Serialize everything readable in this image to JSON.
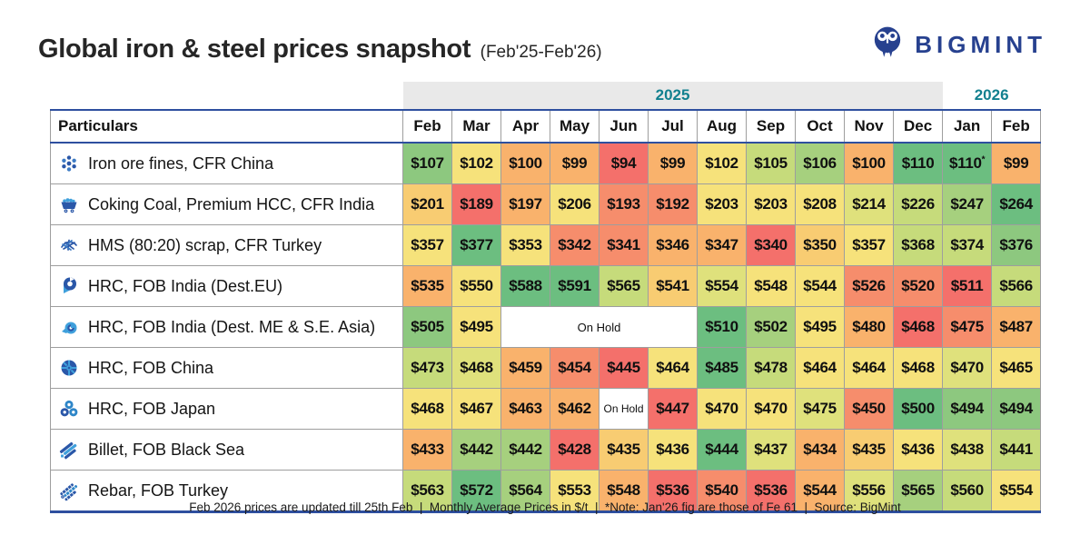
{
  "header": {
    "title": "Global iron & steel prices snapshot",
    "subtitle": "(Feb'25-Feb'26)",
    "logo_text": "BIGMINT"
  },
  "colors": {
    "accent_blue": "#2E4F9F",
    "year_teal": "#12808F",
    "logo_navy": "#27418F",
    "band_gray": "#E9E9E9"
  },
  "table": {
    "particulars_header": "Particulars",
    "year_groups": [
      {
        "label": "2025",
        "span": 11
      },
      {
        "label": "2026",
        "span": 2
      }
    ],
    "months": [
      "Feb",
      "Mar",
      "Apr",
      "May",
      "Jun",
      "Jul",
      "Aug",
      "Sep",
      "Oct",
      "Nov",
      "Dec",
      "Jan",
      "Feb"
    ],
    "palette": {
      "r": "#F4706B",
      "s": "#F68D6C",
      "o": "#F9B26C",
      "a": "#F8CC72",
      "y": "#F6E27B",
      "yg": "#DFE17C",
      "lg": "#C6DB7B",
      "g3": "#A6D07E",
      "g2": "#8DC87F",
      "g1": "#6CBE80",
      "w": "#FFFFFF"
    },
    "rows": [
      {
        "label": "Iron ore fines, CFR China",
        "icon": "iron-ore-icon",
        "cells": [
          {
            "v": "$107",
            "c": "g2"
          },
          {
            "v": "$102",
            "c": "y"
          },
          {
            "v": "$100",
            "c": "o"
          },
          {
            "v": "$99",
            "c": "o"
          },
          {
            "v": "$94",
            "c": "r"
          },
          {
            "v": "$99",
            "c": "o"
          },
          {
            "v": "$102",
            "c": "y"
          },
          {
            "v": "$105",
            "c": "lg"
          },
          {
            "v": "$106",
            "c": "g3"
          },
          {
            "v": "$100",
            "c": "o"
          },
          {
            "v": "$110",
            "c": "g1"
          },
          {
            "v": "$110",
            "c": "g1",
            "sup": "*"
          },
          {
            "v": "$99",
            "c": "o"
          }
        ]
      },
      {
        "label": "Coking Coal, Premium HCC, CFR India",
        "icon": "coal-cart-icon",
        "cells": [
          {
            "v": "$201",
            "c": "a"
          },
          {
            "v": "$189",
            "c": "r"
          },
          {
            "v": "$197",
            "c": "o"
          },
          {
            "v": "$206",
            "c": "y"
          },
          {
            "v": "$193",
            "c": "s"
          },
          {
            "v": "$192",
            "c": "s"
          },
          {
            "v": "$203",
            "c": "y"
          },
          {
            "v": "$203",
            "c": "y"
          },
          {
            "v": "$208",
            "c": "y"
          },
          {
            "v": "$214",
            "c": "yg"
          },
          {
            "v": "$226",
            "c": "lg"
          },
          {
            "v": "$247",
            "c": "g3"
          },
          {
            "v": "$264",
            "c": "g1"
          }
        ]
      },
      {
        "label": "HMS (80:20) scrap, CFR Turkey",
        "icon": "scrap-icon",
        "cells": [
          {
            "v": "$357",
            "c": "y"
          },
          {
            "v": "$377",
            "c": "g1"
          },
          {
            "v": "$353",
            "c": "y"
          },
          {
            "v": "$342",
            "c": "s"
          },
          {
            "v": "$341",
            "c": "s"
          },
          {
            "v": "$346",
            "c": "o"
          },
          {
            "v": "$347",
            "c": "o"
          },
          {
            "v": "$340",
            "c": "r"
          },
          {
            "v": "$350",
            "c": "a"
          },
          {
            "v": "$357",
            "c": "y"
          },
          {
            "v": "$368",
            "c": "lg"
          },
          {
            "v": "$374",
            "c": "lg"
          },
          {
            "v": "$376",
            "c": "g2"
          }
        ]
      },
      {
        "label": "HRC, FOB India (Dest.EU)",
        "icon": "coil-icon",
        "cells": [
          {
            "v": "$535",
            "c": "o"
          },
          {
            "v": "$550",
            "c": "y"
          },
          {
            "v": "$588",
            "c": "g1"
          },
          {
            "v": "$591",
            "c": "g1"
          },
          {
            "v": "$565",
            "c": "lg"
          },
          {
            "v": "$541",
            "c": "a"
          },
          {
            "v": "$554",
            "c": "yg"
          },
          {
            "v": "$548",
            "c": "y"
          },
          {
            "v": "$544",
            "c": "y"
          },
          {
            "v": "$526",
            "c": "s"
          },
          {
            "v": "$520",
            "c": "s"
          },
          {
            "v": "$511",
            "c": "r"
          },
          {
            "v": "$566",
            "c": "lg"
          }
        ]
      },
      {
        "label": "HRC, FOB India (Dest. ME & S.E. Asia)",
        "icon": "coil-light-icon",
        "cells": [
          {
            "v": "$505",
            "c": "g2"
          },
          {
            "v": "$495",
            "c": "y"
          },
          {
            "v": "On Hold",
            "c": "w",
            "span": 4
          },
          {
            "v": "$510",
            "c": "g1"
          },
          {
            "v": "$502",
            "c": "g3"
          },
          {
            "v": "$495",
            "c": "y"
          },
          {
            "v": "$480",
            "c": "o"
          },
          {
            "v": "$468",
            "c": "r"
          },
          {
            "v": "$475",
            "c": "s"
          },
          {
            "v": "$487",
            "c": "o"
          }
        ]
      },
      {
        "label": "HRC, FOB China",
        "icon": "coil-end-icon",
        "cells": [
          {
            "v": "$473",
            "c": "lg"
          },
          {
            "v": "$468",
            "c": "yg"
          },
          {
            "v": "$459",
            "c": "o"
          },
          {
            "v": "$454",
            "c": "s"
          },
          {
            "v": "$445",
            "c": "r"
          },
          {
            "v": "$464",
            "c": "y"
          },
          {
            "v": "$485",
            "c": "g1"
          },
          {
            "v": "$478",
            "c": "lg"
          },
          {
            "v": "$464",
            "c": "y"
          },
          {
            "v": "$464",
            "c": "y"
          },
          {
            "v": "$468",
            "c": "y"
          },
          {
            "v": "$470",
            "c": "yg"
          },
          {
            "v": "$465",
            "c": "y"
          }
        ]
      },
      {
        "label": "HRC, FOB Japan",
        "icon": "three-coils-icon",
        "cells": [
          {
            "v": "$468",
            "c": "y"
          },
          {
            "v": "$467",
            "c": "y"
          },
          {
            "v": "$463",
            "c": "o"
          },
          {
            "v": "$462",
            "c": "o"
          },
          {
            "v": "On Hold",
            "c": "w",
            "small": true
          },
          {
            "v": "$447",
            "c": "r"
          },
          {
            "v": "$470",
            "c": "y"
          },
          {
            "v": "$470",
            "c": "y"
          },
          {
            "v": "$475",
            "c": "yg"
          },
          {
            "v": "$450",
            "c": "s"
          },
          {
            "v": "$500",
            "c": "g1"
          },
          {
            "v": "$494",
            "c": "g2"
          },
          {
            "v": "$494",
            "c": "g2"
          }
        ]
      },
      {
        "label": "Billet, FOB Black Sea",
        "icon": "billet-icon",
        "cells": [
          {
            "v": "$433",
            "c": "o"
          },
          {
            "v": "$442",
            "c": "g3"
          },
          {
            "v": "$442",
            "c": "g3"
          },
          {
            "v": "$428",
            "c": "r"
          },
          {
            "v": "$435",
            "c": "a"
          },
          {
            "v": "$436",
            "c": "y"
          },
          {
            "v": "$444",
            "c": "g1"
          },
          {
            "v": "$437",
            "c": "yg"
          },
          {
            "v": "$434",
            "c": "o"
          },
          {
            "v": "$435",
            "c": "a"
          },
          {
            "v": "$436",
            "c": "y"
          },
          {
            "v": "$438",
            "c": "yg"
          },
          {
            "v": "$441",
            "c": "lg"
          }
        ]
      },
      {
        "label": "Rebar, FOB Turkey",
        "icon": "rebar-icon",
        "cells": [
          {
            "v": "$563",
            "c": "lg"
          },
          {
            "v": "$572",
            "c": "g1"
          },
          {
            "v": "$564",
            "c": "g3"
          },
          {
            "v": "$553",
            "c": "y"
          },
          {
            "v": "$548",
            "c": "o"
          },
          {
            "v": "$536",
            "c": "r"
          },
          {
            "v": "$540",
            "c": "s"
          },
          {
            "v": "$536",
            "c": "r"
          },
          {
            "v": "$544",
            "c": "o"
          },
          {
            "v": "$556",
            "c": "yg"
          },
          {
            "v": "$565",
            "c": "g3"
          },
          {
            "v": "$560",
            "c": "lg"
          },
          {
            "v": "$554",
            "c": "y"
          }
        ]
      }
    ]
  },
  "footer": {
    "text": "Feb 2026 prices are updated till 25th Feb  |  Monthly Average Prices in $/t  |  *Note: Jan'26 fig are those of Fe 61  |  Source: BigMint"
  },
  "chart_data": {
    "type": "heatmap",
    "title": "Global iron & steel prices snapshot (Feb'25-Feb'26)",
    "unit": "$/t",
    "x": [
      "Feb'25",
      "Mar'25",
      "Apr'25",
      "May'25",
      "Jun'25",
      "Jul'25",
      "Aug'25",
      "Sep'25",
      "Oct'25",
      "Nov'25",
      "Dec'25",
      "Jan'26",
      "Feb'26"
    ],
    "series": [
      {
        "name": "Iron ore fines, CFR China",
        "values": [
          107,
          102,
          100,
          99,
          94,
          99,
          102,
          105,
          106,
          100,
          110,
          110,
          99
        ]
      },
      {
        "name": "Coking Coal, Premium HCC, CFR India",
        "values": [
          201,
          189,
          197,
          206,
          193,
          192,
          203,
          203,
          208,
          214,
          226,
          247,
          264
        ]
      },
      {
        "name": "HMS (80:20) scrap, CFR Turkey",
        "values": [
          357,
          377,
          353,
          342,
          341,
          346,
          347,
          340,
          350,
          357,
          368,
          374,
          376
        ]
      },
      {
        "name": "HRC, FOB India (Dest.EU)",
        "values": [
          535,
          550,
          588,
          591,
          565,
          541,
          554,
          548,
          544,
          526,
          520,
          511,
          566
        ]
      },
      {
        "name": "HRC, FOB India (Dest. ME & S.E. Asia)",
        "values": [
          505,
          495,
          null,
          null,
          null,
          null,
          510,
          502,
          495,
          480,
          468,
          475,
          487
        ]
      },
      {
        "name": "HRC, FOB China",
        "values": [
          473,
          468,
          459,
          454,
          445,
          464,
          485,
          478,
          464,
          464,
          468,
          470,
          465
        ]
      },
      {
        "name": "HRC, FOB Japan",
        "values": [
          468,
          467,
          463,
          462,
          null,
          447,
          470,
          470,
          475,
          450,
          500,
          494,
          494
        ]
      },
      {
        "name": "Billet, FOB Black Sea",
        "values": [
          433,
          442,
          442,
          428,
          435,
          436,
          444,
          437,
          434,
          435,
          436,
          438,
          441
        ]
      },
      {
        "name": "Rebar, FOB Turkey",
        "values": [
          563,
          572,
          564,
          553,
          548,
          536,
          540,
          536,
          544,
          556,
          565,
          560,
          554
        ]
      }
    ],
    "null_meaning": "On Hold",
    "color_scale": "row-relative: red = low, yellow = mid, green = high",
    "notes": [
      "Jan'26 iron ore figure is of Fe 61 (asterisk)"
    ]
  }
}
